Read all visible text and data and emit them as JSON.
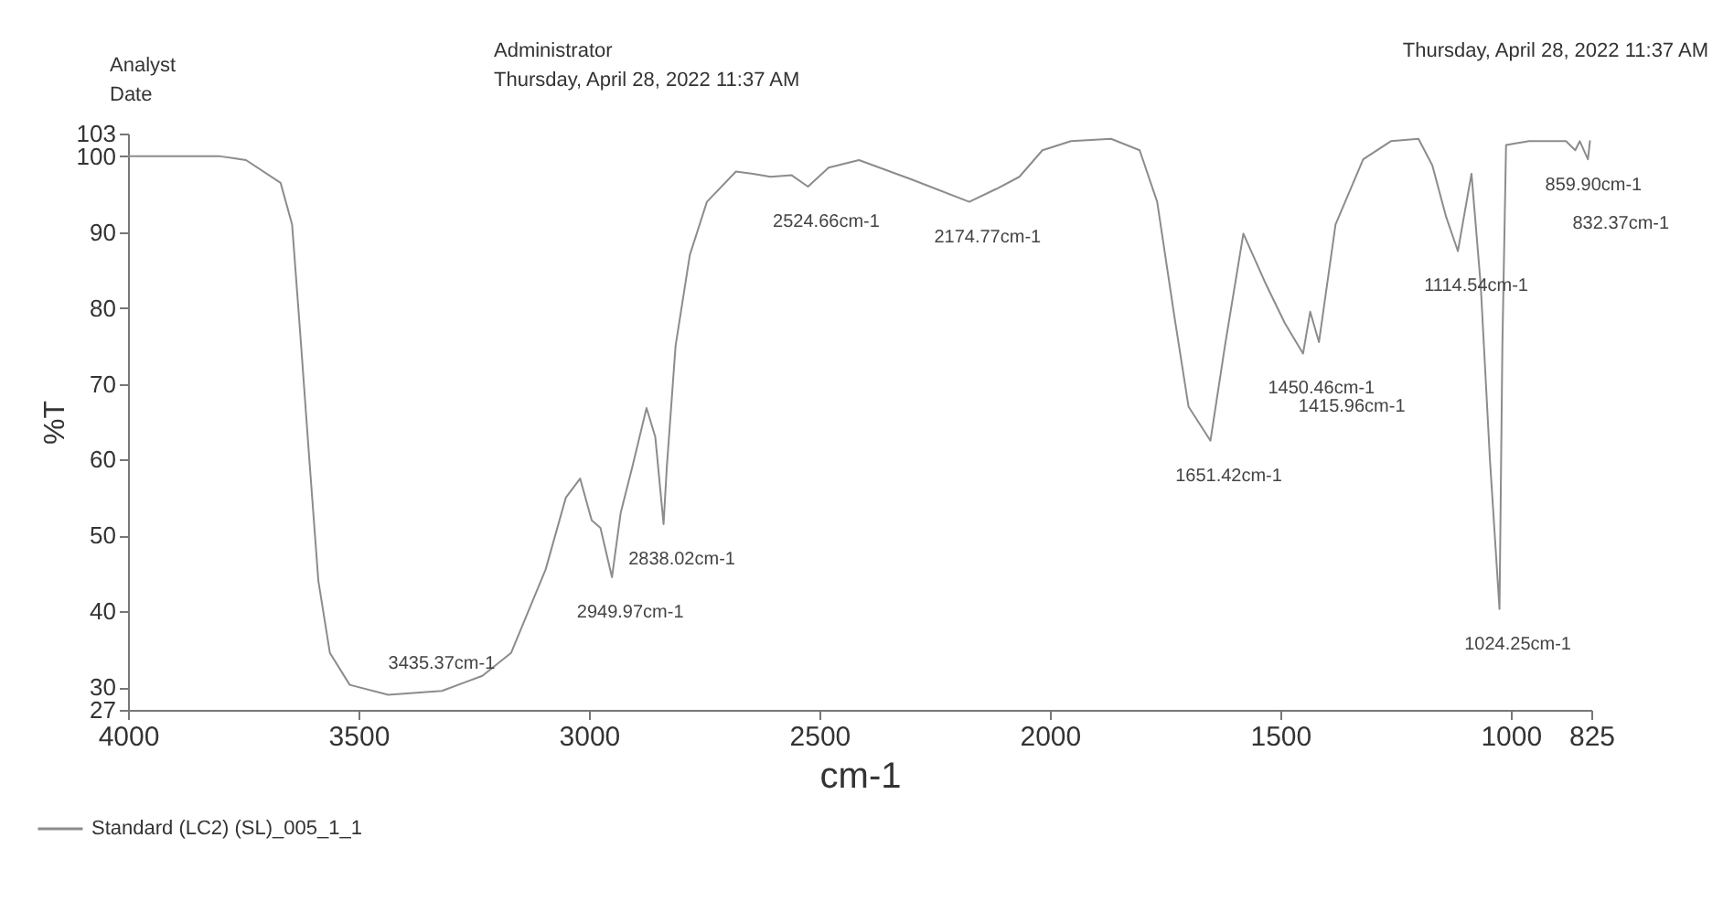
{
  "chart_data": {
    "type": "line",
    "xlabel": "cm-1",
    "ylabel": "%T",
    "x": [
      4000,
      3900,
      3800,
      3744,
      3669,
      3644,
      3625,
      3606,
      3587,
      3562,
      3519,
      3435.37,
      3319,
      3231,
      3169,
      3094,
      3050,
      3019,
      2994,
      2975,
      2949.97,
      2931,
      2906,
      2875,
      2856,
      2838.02,
      2831,
      2812,
      2781,
      2744,
      2681,
      2644,
      2606,
      2560,
      2524.66,
      2480,
      2414,
      2302,
      2174.77,
      2116,
      2066,
      2016,
      1954,
      1867,
      1805,
      1767,
      1730,
      1699,
      1651.42,
      1620,
      1580,
      1530,
      1490,
      1450.46,
      1435,
      1415.96,
      1380,
      1320,
      1260,
      1200,
      1170,
      1140,
      1114.54,
      1085,
      1065,
      1045,
      1024.25,
      1018,
      1010,
      960,
      880,
      859.9,
      850,
      832.37,
      828
    ],
    "series": [
      {
        "name": "Standard (LC2) (SL)_005_1_1",
        "color": "#8c8c8c",
        "values": [
          100,
          100,
          100,
          99.5,
          96.5,
          91,
          75.5,
          59.5,
          44,
          34.5,
          30.3,
          29,
          29.5,
          31.5,
          34.5,
          45.5,
          55,
          57.5,
          52,
          51,
          44.5,
          53,
          59,
          66.8,
          63,
          51.5,
          59,
          75,
          87,
          94,
          98,
          97.7,
          97.3,
          97.5,
          96,
          98.5,
          99.5,
          97,
          94,
          95.7,
          97.3,
          100.8,
          102,
          102.3,
          100.8,
          94,
          79,
          67,
          62.5,
          75,
          89.8,
          83,
          78,
          74,
          79.5,
          75.5,
          91,
          99.6,
          102,
          102.3,
          98.8,
          92,
          87.5,
          97.7,
          83,
          60,
          40.3,
          75,
          101.5,
          102,
          102,
          100.8,
          102,
          99.6,
          102
        ]
      }
    ],
    "xlim": [
      4000,
      825
    ],
    "xticks": [
      4000,
      3500,
      3000,
      2500,
      2000,
      1500,
      1000,
      825
    ],
    "ylim": [
      27,
      103
    ],
    "yticks": [
      27,
      30,
      40,
      50,
      60,
      70,
      80,
      90,
      100,
      103
    ],
    "grid": false,
    "legend": "bottom left",
    "annotations": [
      "Analyst",
      "Date",
      "Administrator",
      "Thursday, April 28, 2022 11:37 AM",
      "Thursday, April 28, 2022 11:37 AM",
      {
        "text": "3435.37cm-1",
        "x": 3435.37,
        "y": 29
      },
      {
        "text": "2949.97cm-1",
        "x": 2949.97,
        "y": 44.5
      },
      {
        "text": "2838.02cm-1",
        "x": 2838.02,
        "y": 51.5
      },
      {
        "text": "2524.66cm-1",
        "x": 2524.66,
        "y": 96
      },
      {
        "text": "2174.77cm-1",
        "x": 2174.77,
        "y": 94
      },
      {
        "text": "1651.42cm-1",
        "x": 1651.42,
        "y": 62.5
      },
      {
        "text": "1450.46cm-1",
        "x": 1450.46,
        "y": 74
      },
      {
        "text": "1415.96cm-1",
        "x": 1415.96,
        "y": 75.5
      },
      {
        "text": "1114.54cm-1",
        "x": 1114.54,
        "y": 87.5
      },
      {
        "text": "1024.25cm-1",
        "x": 1024.25,
        "y": 40.3
      },
      {
        "text": "859.90cm-1",
        "x": 859.9,
        "y": 100.8
      },
      {
        "text": "832.37cm-1",
        "x": 832.37,
        "y": 99.6
      }
    ]
  }
}
